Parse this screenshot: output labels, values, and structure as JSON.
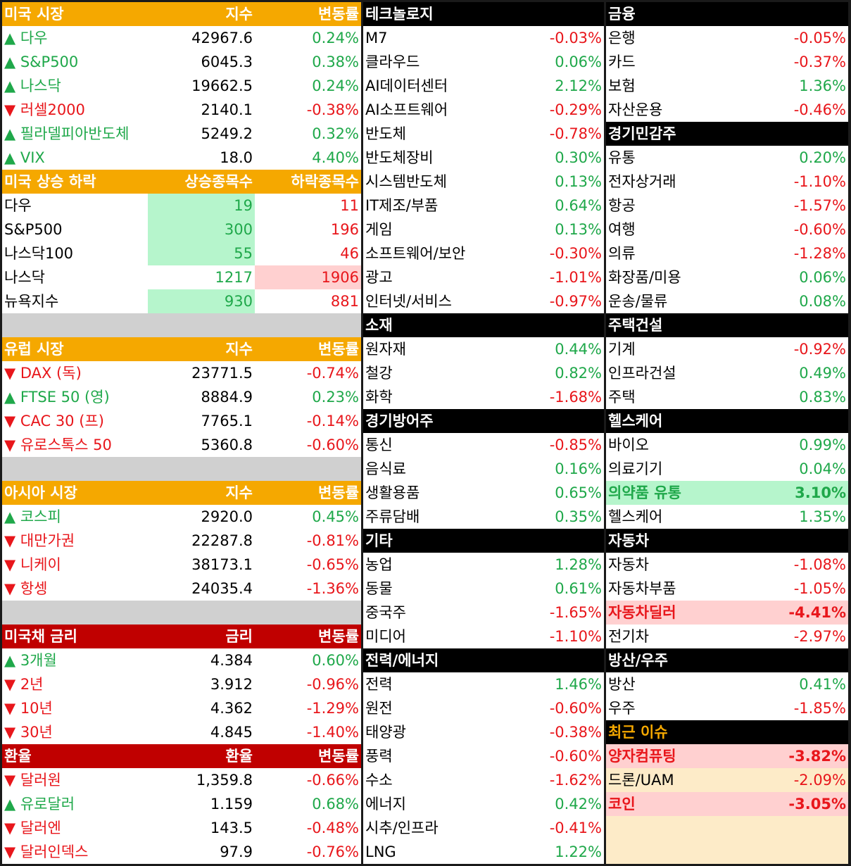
{
  "columns": [
    {
      "blocks": [
        {
          "style": "orange",
          "header": [
            "미국 시장",
            "지수",
            "변동률"
          ],
          "rows": [
            [
              "▲ 다우",
              "42967.6",
              "0.24%"
            ],
            [
              "▲ S&P500",
              "6045.3",
              "0.38%"
            ],
            [
              "▲ 나스닥",
              "19662.5",
              "0.24%"
            ],
            [
              "▼ 러셀2000",
              "2140.1",
              "-0.38%"
            ],
            [
              "▲ 필라델피아반도체",
              "5249.2",
              "0.32%"
            ],
            [
              "▲ VIX",
              "18.0",
              "4.40%"
            ]
          ]
        },
        {
          "style": "orange",
          "kind": "breadth",
          "header": [
            "미국 상승 하락",
            "상승종목수",
            "하락종목수"
          ],
          "rows": [
            [
              "다우",
              19,
              11
            ],
            [
              "S&P500",
              300,
              196
            ],
            [
              "나스닥100",
              55,
              46
            ],
            [
              "나스닥",
              1217,
              1906
            ],
            [
              "뉴욕지수",
              930,
              881
            ]
          ],
          "highlight": {
            "0": "up",
            "1": "up",
            "2": "up",
            "3": "down",
            "4": "up"
          },
          "spacer_after": true
        },
        {
          "style": "orange",
          "header": [
            "유럽 시장",
            "지수",
            "변동률"
          ],
          "rows": [
            [
              "▼ DAX (독)",
              "23771.5",
              "-0.74%"
            ],
            [
              "▲ FTSE 50 (영)",
              "8884.9",
              "0.23%"
            ],
            [
              "▼ CAC 30 (프)",
              "7765.1",
              "-0.14%"
            ],
            [
              "▼ 유로스톡스 50",
              "5360.8",
              "-0.60%"
            ]
          ],
          "spacer_after": true
        },
        {
          "style": "orange",
          "header": [
            "아시아 시장",
            "지수",
            "변동률"
          ],
          "rows": [
            [
              "▲ 코스피",
              "2920.0",
              "0.45%"
            ],
            [
              "▼ 대만가권",
              "22287.8",
              "-0.81%"
            ],
            [
              "▼ 니케이",
              "38173.1",
              "-0.65%"
            ],
            [
              "▼ 항셍",
              "24035.4",
              "-1.36%"
            ]
          ],
          "spacer_after": true
        },
        {
          "style": "red",
          "header": [
            "미국채 금리",
            "금리",
            "변동률"
          ],
          "rows": [
            [
              "▲ 3개월",
              "4.384",
              "0.60%"
            ],
            [
              "▼ 2년",
              "3.912",
              "-0.96%"
            ],
            [
              "▼ 10년",
              "4.362",
              "-1.29%"
            ],
            [
              "▼ 30년",
              "4.845",
              "-1.40%"
            ]
          ]
        },
        {
          "style": "red",
          "header": [
            "환율",
            "환율",
            "변동률"
          ],
          "rows": [
            [
              "▼ 달러원",
              "1,359.8",
              "-0.66%"
            ],
            [
              "▲ 유로달러",
              "1.159",
              "0.68%"
            ],
            [
              "▼ 달러엔",
              "143.5",
              "-0.48%"
            ],
            [
              "▼ 달러인덱스",
              "97.9",
              "-0.76%"
            ]
          ]
        }
      ]
    },
    {
      "blocks": [
        {
          "style": "black",
          "header": [
            "테크놀로지"
          ],
          "rows": [
            [
              "M7",
              "-0.03%"
            ],
            [
              "클라우드",
              "0.06%"
            ],
            [
              "AI데이터센터",
              "2.12%"
            ],
            [
              "AI소프트웨어",
              "-0.29%"
            ],
            [
              "반도체",
              "-0.78%"
            ],
            [
              "반도체장비",
              "0.30%"
            ],
            [
              "시스템반도체",
              "0.13%"
            ],
            [
              "IT제조/부품",
              "0.64%"
            ],
            [
              "게임",
              "0.13%"
            ],
            [
              "소프트웨어/보안",
              "-0.30%"
            ],
            [
              "광고",
              "-1.01%"
            ],
            [
              "인터넷/서비스",
              "-0.97%"
            ]
          ]
        },
        {
          "style": "black",
          "header": [
            "소재"
          ],
          "rows": [
            [
              "원자재",
              "0.44%"
            ],
            [
              "철강",
              "0.82%"
            ],
            [
              "화학",
              "-1.68%"
            ]
          ]
        },
        {
          "style": "black",
          "header": [
            "경기방어주"
          ],
          "rows": [
            [
              "통신",
              "-0.85%"
            ],
            [
              "음식료",
              "0.16%"
            ],
            [
              "생활용품",
              "0.65%"
            ],
            [
              "주류담배",
              "0.35%"
            ]
          ]
        },
        {
          "style": "black",
          "header": [
            "기타"
          ],
          "rows": [
            [
              "농업",
              "1.28%"
            ],
            [
              "동물",
              "0.61%"
            ],
            [
              "중국주",
              "-1.65%"
            ],
            [
              "미디어",
              "-1.10%"
            ]
          ]
        },
        {
          "style": "black",
          "header": [
            "전력/에너지"
          ],
          "rows": [
            [
              "전력",
              "1.46%"
            ],
            [
              "원전",
              "-0.60%"
            ],
            [
              "태양광",
              "-0.38%"
            ],
            [
              "풍력",
              "-0.60%"
            ],
            [
              "수소",
              "-1.62%"
            ],
            [
              "에너지",
              "0.42%"
            ],
            [
              "시추/인프라",
              "-0.41%"
            ],
            [
              "LNG",
              "1.22%"
            ]
          ]
        }
      ]
    },
    {
      "blocks": [
        {
          "style": "black",
          "header": [
            "금융"
          ],
          "rows": [
            [
              "은행",
              "-0.05%"
            ],
            [
              "카드",
              "-0.37%"
            ],
            [
              "보험",
              "1.36%"
            ],
            [
              "자산운용",
              "-0.46%"
            ]
          ]
        },
        {
          "style": "black",
          "header": [
            "경기민감주"
          ],
          "rows": [
            [
              "유통",
              "0.20%"
            ],
            [
              "전자상거래",
              "-1.10%"
            ],
            [
              "항공",
              "-1.57%"
            ],
            [
              "여행",
              "-0.60%"
            ],
            [
              "의류",
              "-1.28%"
            ],
            [
              "화장품/미용",
              "0.06%"
            ],
            [
              "운송/물류",
              "0.08%"
            ]
          ]
        },
        {
          "style": "black",
          "header": [
            "주택건설"
          ],
          "rows": [
            [
              "기계",
              "-0.92%"
            ],
            [
              "인프라건설",
              "0.49%"
            ],
            [
              "주택",
              "0.83%"
            ]
          ]
        },
        {
          "style": "black",
          "header": [
            "헬스케어"
          ],
          "rows": [
            [
              "바이오",
              "0.99%"
            ],
            [
              "의료기기",
              "0.04%"
            ],
            [
              "의약품 유통",
              "3.10%"
            ],
            [
              "헬스케어",
              "1.35%"
            ]
          ],
          "highlight": {
            "2": "green"
          }
        },
        {
          "style": "black",
          "header": [
            "자동차"
          ],
          "rows": [
            [
              "자동차",
              "-1.08%"
            ],
            [
              "자동차부품",
              "-1.05%"
            ],
            [
              "자동차딜러",
              "-4.41%"
            ],
            [
              "전기차",
              "-2.97%"
            ]
          ],
          "highlight": {
            "2": "red"
          }
        },
        {
          "style": "black",
          "header": [
            "방산/우주"
          ],
          "rows": [
            [
              "방산",
              "0.41%"
            ],
            [
              "우주",
              "-1.85%"
            ]
          ]
        },
        {
          "style": "issue",
          "header": [
            "최근 이슈"
          ],
          "rows": [
            [
              "양자컴퓨팅",
              "-3.82%"
            ],
            [
              "드론/UAM",
              "-2.09%"
            ],
            [
              "코인",
              "-3.05%"
            ]
          ],
          "highlight": {
            "0": "red",
            "2": "red"
          },
          "fill_rest": true
        }
      ]
    }
  ]
}
